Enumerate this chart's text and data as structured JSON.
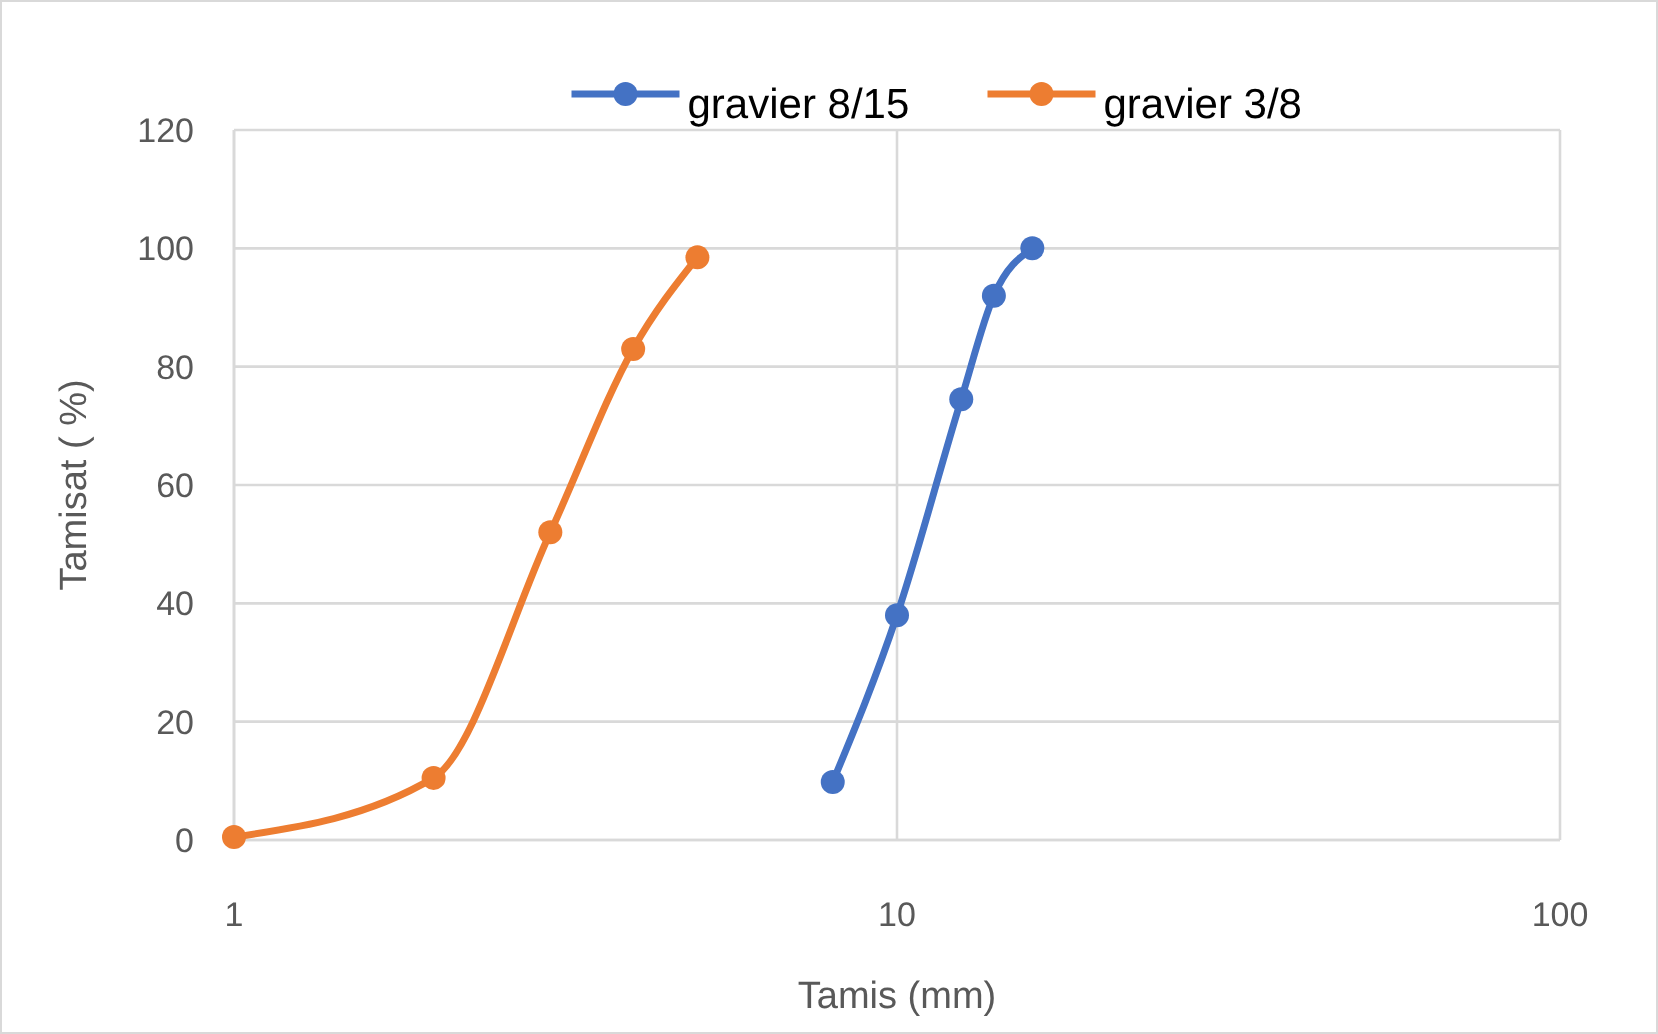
{
  "chart_data": {
    "type": "line",
    "xlabel": "Tamis (mm)",
    "ylabel": "Tamisat ( %)",
    "series": [
      {
        "name": "gravier 8/15",
        "color": "#4472c4",
        "x": [
          8,
          10,
          12.5,
          14,
          16
        ],
        "values": [
          9.8,
          38,
          74.5,
          92,
          100
        ]
      },
      {
        "name": "gravier 3/8",
        "color": "#ed7d31",
        "x": [
          1,
          2,
          3,
          4,
          5
        ],
        "values": [
          0.5,
          10.5,
          52,
          83,
          98.5
        ]
      }
    ],
    "xlim": [
      1,
      100
    ],
    "xticks": [
      1,
      10,
      100
    ],
    "ylim": [
      0,
      120
    ],
    "yticks": [
      0,
      20,
      40,
      60,
      80,
      100,
      120
    ],
    "log": "x",
    "grid": true,
    "legend": "top",
    "marker": "circle",
    "line_style": "solid"
  }
}
